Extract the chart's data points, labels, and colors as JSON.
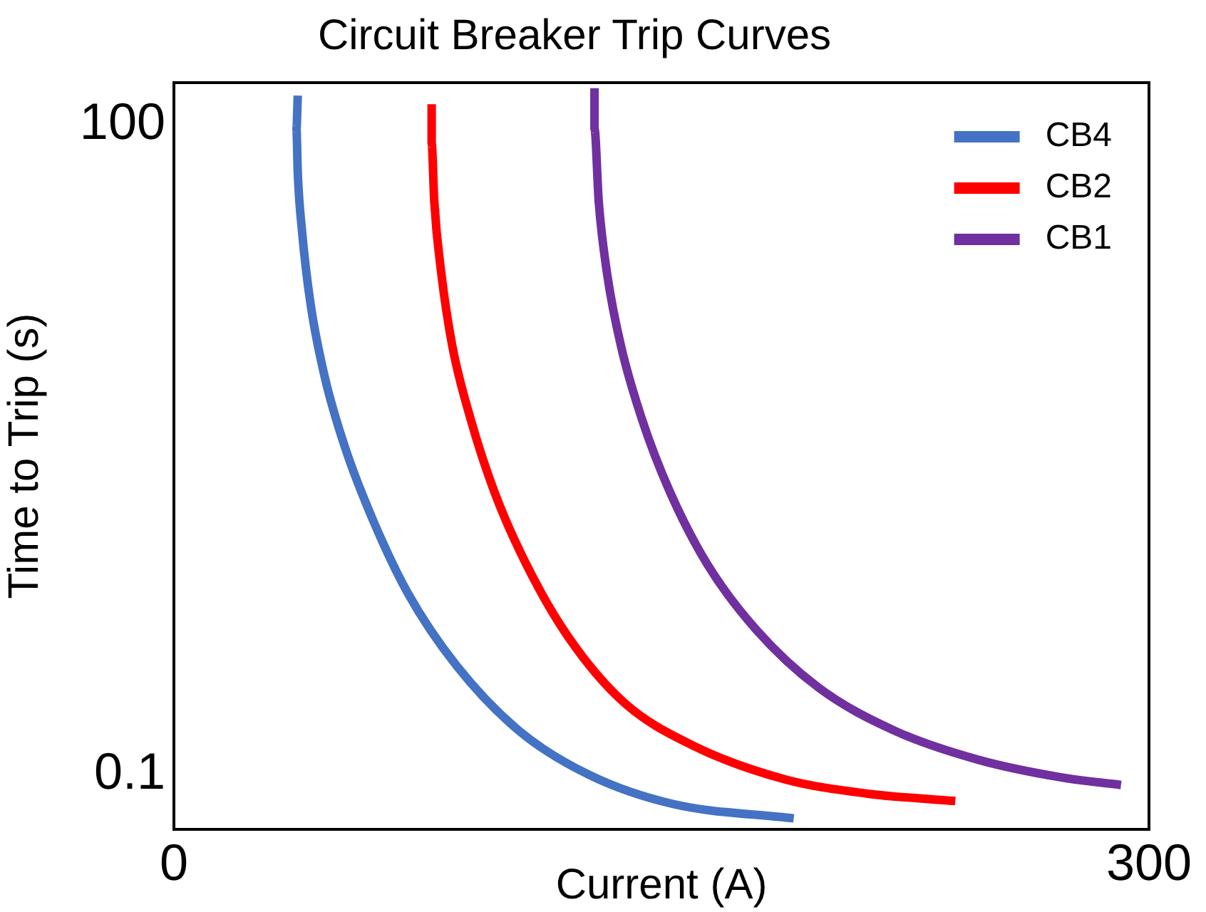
{
  "chart_data": {
    "type": "line",
    "title": "Circuit Breaker Trip Curves",
    "xlabel": "Current (A)",
    "ylabel": "Time to Trip (s)",
    "xlim": [
      0,
      300
    ],
    "xticks": [
      0,
      300
    ],
    "ylim": [
      0.056,
      156
    ],
    "yticks": [
      0.1,
      100
    ],
    "log": "y",
    "grid": false,
    "legend": "top right",
    "marker": "none",
    "line_style": "solid",
    "series": [
      {
        "name": "CB4",
        "color": "#4472c4",
        "x": [
          38.1,
          37.7,
          38.1,
          39.4,
          42,
          46.3,
          52.7,
          61.3,
          72,
          87,
          106.3,
          127.7,
          153.4,
          190.7
        ],
        "values": [
          136,
          95.5,
          60.1,
          32.4,
          15,
          6.95,
          3.22,
          1.49,
          0.687,
          0.318,
          0.159,
          0.1,
          0.0734,
          0.0629
        ]
      },
      {
        "name": "CB2",
        "color": "#ff0000",
        "x": [
          79.3,
          79.3,
          80.1,
          82.3,
          85.7,
          91.3,
          98.6,
          108.4,
          121.3,
          138.4,
          159.9,
          187.7,
          213.4,
          240.4
        ],
        "values": [
          124,
          81.8,
          44.2,
          20.4,
          9.44,
          4.37,
          2.02,
          0.936,
          0.433,
          0.216,
          0.136,
          0.0955,
          0.0818,
          0.0757
        ]
      },
      {
        "name": "CB1",
        "color": "#7030a0",
        "x": [
          129.4,
          129.4,
          130.7,
          133.3,
          137.6,
          144,
          152.6,
          164.1,
          179.1,
          198.4,
          222,
          247.7,
          273.4,
          291.4
        ],
        "values": [
          147,
          95.5,
          44.2,
          20.4,
          9.44,
          4.37,
          2.02,
          0.936,
          0.468,
          0.252,
          0.159,
          0.117,
          0.097,
          0.0897
        ]
      }
    ]
  }
}
